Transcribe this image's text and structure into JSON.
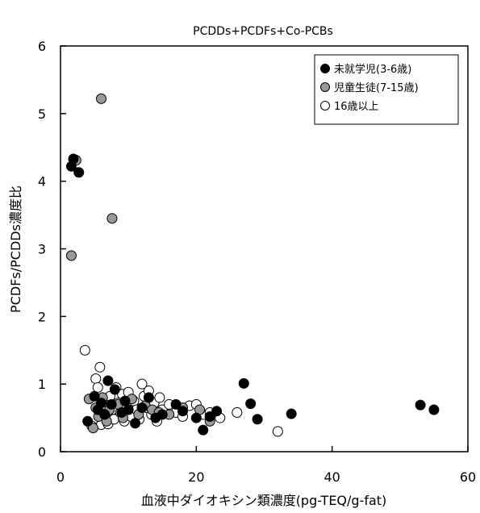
{
  "chart_data": {
    "type": "scatter",
    "title": "PCDDs+PCDFs+Co-PCBs",
    "xlabel": "血液中ダイオキシン類濃度(pg-TEQ/g-fat)",
    "ylabel": "PCDFs/PCDDs濃度比",
    "xlim": [
      0,
      60
    ],
    "ylim": [
      0,
      6
    ],
    "xticks": [
      "0",
      "20",
      "40",
      "60"
    ],
    "yticks": [
      "0",
      "1",
      "2",
      "3",
      "4",
      "5",
      "6"
    ],
    "grid": false,
    "legend_position": "top-right",
    "series": [
      {
        "name": "未就学児(3-6歳)",
        "marker": "filled-black",
        "color": "#000000",
        "points": [
          [
            1.6,
            4.22
          ],
          [
            1.9,
            4.33
          ],
          [
            2.7,
            4.13
          ],
          [
            4.0,
            0.45
          ],
          [
            5.0,
            0.82
          ],
          [
            5.5,
            0.62
          ],
          [
            6.0,
            0.72
          ],
          [
            6.5,
            0.55
          ],
          [
            7.0,
            1.05
          ],
          [
            7.5,
            0.7
          ],
          [
            8.0,
            0.92
          ],
          [
            9.0,
            0.58
          ],
          [
            9.5,
            0.75
          ],
          [
            10.0,
            0.62
          ],
          [
            11.0,
            0.42
          ],
          [
            12.0,
            0.65
          ],
          [
            13.0,
            0.8
          ],
          [
            14.0,
            0.5
          ],
          [
            15.0,
            0.55
          ],
          [
            17.0,
            0.7
          ],
          [
            18.0,
            0.6
          ],
          [
            20.0,
            0.5
          ],
          [
            21.0,
            0.32
          ],
          [
            22.0,
            0.52
          ],
          [
            23.0,
            0.6
          ],
          [
            27.0,
            1.01
          ],
          [
            28.0,
            0.71
          ],
          [
            29.0,
            0.48
          ],
          [
            34.0,
            0.56
          ],
          [
            53.0,
            0.69
          ],
          [
            55.0,
            0.62
          ]
        ]
      },
      {
        "name": "児童生徒(7-15歳)",
        "marker": "filled-gray",
        "color": "#999999",
        "points": [
          [
            1.6,
            2.9
          ],
          [
            2.3,
            4.31
          ],
          [
            6.0,
            5.22
          ],
          [
            7.6,
            3.45
          ],
          [
            4.2,
            0.78
          ],
          [
            4.8,
            0.35
          ],
          [
            5.2,
            0.65
          ],
          [
            5.6,
            0.52
          ],
          [
            6.2,
            0.8
          ],
          [
            6.8,
            0.45
          ],
          [
            7.2,
            0.62
          ],
          [
            8.5,
            0.7
          ],
          [
            9.2,
            0.5
          ],
          [
            10.5,
            0.78
          ],
          [
            11.5,
            0.55
          ],
          [
            12.5,
            0.68
          ],
          [
            13.5,
            0.62
          ],
          [
            14.5,
            0.58
          ],
          [
            16.0,
            0.55
          ],
          [
            18.0,
            0.65
          ],
          [
            20.5,
            0.62
          ],
          [
            22.0,
            0.45
          ]
        ]
      },
      {
        "name": "16歳以上",
        "marker": "open-white",
        "color": "#ffffff",
        "points": [
          [
            3.6,
            1.5
          ],
          [
            4.6,
            0.38
          ],
          [
            5.2,
            1.08
          ],
          [
            5.5,
            0.95
          ],
          [
            5.8,
            1.25
          ],
          [
            6.0,
            0.4
          ],
          [
            6.3,
            0.7
          ],
          [
            6.6,
            0.52
          ],
          [
            7.0,
            0.41
          ],
          [
            7.3,
            0.82
          ],
          [
            7.6,
            0.62
          ],
          [
            7.9,
            0.48
          ],
          [
            8.2,
            0.95
          ],
          [
            8.5,
            0.72
          ],
          [
            8.8,
            0.58
          ],
          [
            9.1,
            0.85
          ],
          [
            9.4,
            0.45
          ],
          [
            9.7,
            0.68
          ],
          [
            10.0,
            0.88
          ],
          [
            10.4,
            0.52
          ],
          [
            10.8,
            0.75
          ],
          [
            11.2,
            0.62
          ],
          [
            11.6,
            0.48
          ],
          [
            12.0,
            1.0
          ],
          [
            12.3,
            0.82
          ],
          [
            12.7,
            0.65
          ],
          [
            13.0,
            0.9
          ],
          [
            13.4,
            0.55
          ],
          [
            13.8,
            0.72
          ],
          [
            14.2,
            0.45
          ],
          [
            14.6,
            0.8
          ],
          [
            15.0,
            0.62
          ],
          [
            16.0,
            0.7
          ],
          [
            17.0,
            0.58
          ],
          [
            18.0,
            0.52
          ],
          [
            19.0,
            0.68
          ],
          [
            20.0,
            0.7
          ],
          [
            21.0,
            0.55
          ],
          [
            22.0,
            0.58
          ],
          [
            23.5,
            0.5
          ],
          [
            26.0,
            0.58
          ],
          [
            32.0,
            0.3
          ]
        ]
      }
    ]
  }
}
